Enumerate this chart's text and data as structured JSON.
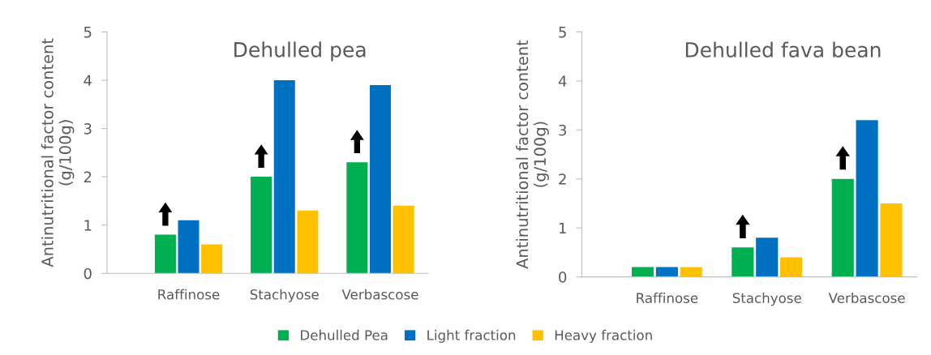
{
  "chart_data": [
    {
      "type": "bar",
      "title": "Dehulled pea",
      "ylabel": "Antinutritional factor content\n(g/100g)",
      "categories": [
        "Raffinose",
        "Stachyose",
        "Verbascose"
      ],
      "ylim": [
        0,
        5
      ],
      "yticks": [
        0,
        1,
        2,
        3,
        4,
        5
      ],
      "grid": false,
      "legend": "bottom",
      "series": [
        {
          "name": "Dehulled Pea",
          "color": "#00b050",
          "values": [
            0.8,
            2.0,
            2.3
          ]
        },
        {
          "name": "Light fraction",
          "color": "#0070c0",
          "values": [
            1.1,
            4.0,
            3.9
          ]
        },
        {
          "name": "Heavy fraction",
          "color": "#ffc000",
          "values": [
            0.6,
            1.3,
            1.4
          ]
        }
      ]
    },
    {
      "type": "bar",
      "title": "Dehulled fava bean",
      "ylabel": "Antinutritional factor content\n(g/100g)",
      "categories": [
        "Raffinose",
        "Stachyose",
        "Verbascose"
      ],
      "ylim": [
        0,
        5
      ],
      "yticks": [
        0,
        1,
        2,
        3,
        4,
        5
      ],
      "grid": false,
      "series": [
        {
          "color": "#00b050",
          "values": [
            0.2,
            0.6,
            2.0
          ]
        },
        {
          "color": "#0070c0",
          "values": [
            0.2,
            0.8,
            3.2
          ]
        },
        {
          "color": "#ffc000",
          "values": [
            0.2,
            0.4,
            1.5
          ]
        }
      ]
    }
  ]
}
